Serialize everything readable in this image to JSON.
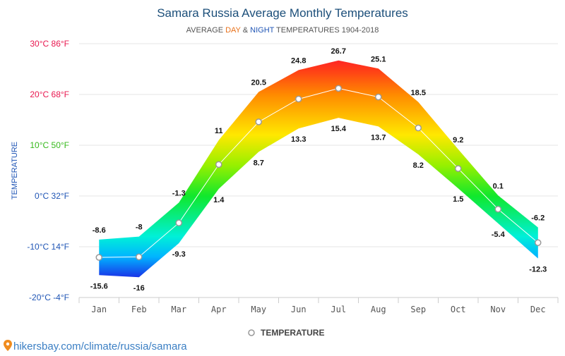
{
  "chart_data": {
    "type": "area",
    "title": "Samara Russia Average Monthly Temperatures",
    "subtitle": {
      "prefix": "AVERAGE ",
      "day": "DAY",
      "amp": " & ",
      "night": "NIGHT",
      "suffix": " TEMPERATURES 1904-2018"
    },
    "ylabel": "TEMPERATURE",
    "categories": [
      "Jan",
      "Feb",
      "Mar",
      "Apr",
      "May",
      "Jun",
      "Jul",
      "Aug",
      "Sep",
      "Oct",
      "Nov",
      "Dec"
    ],
    "series": [
      {
        "name": "TEMPERATURE",
        "values": [
          -12.1,
          -12.0,
          -5.3,
          6.2,
          14.6,
          19.1,
          21.2,
          19.5,
          13.4,
          5.4,
          -2.6,
          -9.2
        ]
      }
    ],
    "day_values": [
      -8.6,
      -8,
      -1.3,
      11,
      20.5,
      24.8,
      26.7,
      25.1,
      18.5,
      9.2,
      0.1,
      -6.2
    ],
    "night_values": [
      -15.6,
      -16,
      -9.3,
      1.4,
      8.7,
      13.3,
      15.4,
      13.7,
      8.2,
      1.5,
      -5.4,
      -12.3
    ],
    "day_labels": [
      "-8.6",
      "-8",
      "-1.3",
      "11",
      "20.5",
      "24.8",
      "26.7",
      "25.1",
      "18.5",
      "9.2",
      "0.1",
      "-6.2"
    ],
    "night_labels": [
      "-15.6",
      "-16",
      "-9.3",
      "1.4",
      "8.7",
      "13.3",
      "15.4",
      "13.7",
      "8.2",
      "1.5",
      "-5.4",
      "-12.3"
    ],
    "y_ticks": [
      {
        "value": 30,
        "label": "30°C 86°F",
        "color": "#e8174f"
      },
      {
        "value": 20,
        "label": "20°C 68°F",
        "color": "#e8174f"
      },
      {
        "value": 10,
        "label": "10°C 50°F",
        "color": "#35b91b"
      },
      {
        "value": 0,
        "label": "0°C 32°F",
        "color": "#1f55b5"
      },
      {
        "value": -10,
        "label": "-10°C 14°F",
        "color": "#1f55b5"
      },
      {
        "value": -20,
        "label": "-20°C -4°F",
        "color": "#1f55b5"
      }
    ],
    "ylim": [
      -20,
      30
    ],
    "grid": true,
    "legend": "bottom-center",
    "colors": {
      "title": "#1c4f7a",
      "subtitle": "#555555",
      "day": "#e8711a",
      "night": "#1f55b5",
      "grid": "#e6e6e6",
      "axis_text": "#555555",
      "avg_line": "#ffffff",
      "avg_marker_stroke": "#999999",
      "link": "#3b7fc4",
      "pin": "#f08c1e"
    },
    "gradient": [
      {
        "value": 30,
        "color": "#ff0040"
      },
      {
        "value": 25,
        "color": "#ff3a18"
      },
      {
        "value": 20,
        "color": "#ff8a00"
      },
      {
        "value": 12,
        "color": "#ffe800"
      },
      {
        "value": 6,
        "color": "#96f000"
      },
      {
        "value": 0,
        "color": "#10e82c"
      },
      {
        "value": -8,
        "color": "#00f0d8"
      },
      {
        "value": -12,
        "color": "#00b4ff"
      },
      {
        "value": -16,
        "color": "#1a34e8"
      }
    ]
  },
  "footer": {
    "link_text": "hikersbay.com/climate/russia/samara",
    "pin_icon": "map-pin-icon"
  }
}
